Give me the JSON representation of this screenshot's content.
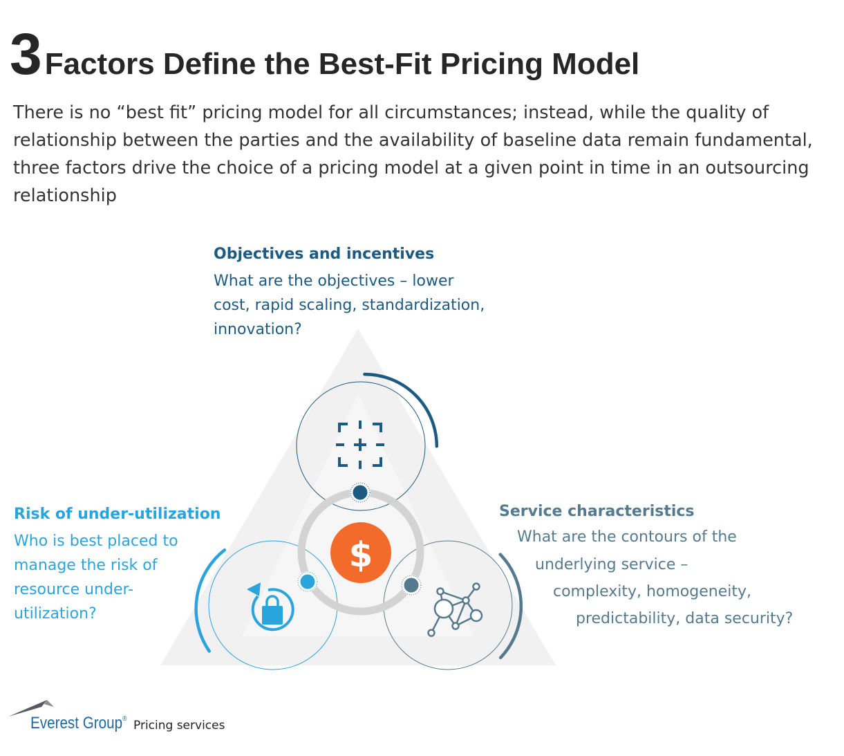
{
  "header": {
    "number": "3",
    "title": "Factors Define the Best-Fit Pricing Model"
  },
  "intro": {
    "text": "There is no “best fit” pricing model for all circumstances; instead, while the quality of relationship between the parties and the availability of baseline data remain fundamental, three factors drive the choice of a pricing model at a given point in time in an outsourcing relationship"
  },
  "factors": {
    "objectives": {
      "title": "Objectives and incentives",
      "lines": [
        "What are the objectives – lower",
        "cost, rapid scaling, standardization,",
        "innovation?"
      ],
      "icon": "focus-plus-icon",
      "color": "#1c5a82"
    },
    "risk": {
      "title": "Risk of under-utilization",
      "lines": [
        "Who is best placed to",
        "manage the risk of",
        "resource under-",
        "utilization?"
      ],
      "icon": "undo-lock-icon",
      "color": "#2aa4dc"
    },
    "service": {
      "title": "Service characteristics",
      "lines": [
        "What are the contours of the",
        "underlying service –",
        "complexity, homogeneity,",
        "predictability, data security?"
      ],
      "icon": "network-nodes-icon",
      "color": "#557a8e"
    }
  },
  "center": {
    "symbol": "$",
    "icon": "dollar-coin-icon",
    "color": "#f26b2a"
  },
  "colors": {
    "triangle": "#f1f1f1",
    "ring": "#d3d3d3"
  },
  "footer": {
    "brand": "Everest Group",
    "registered": "®",
    "tagline": "Pricing services"
  }
}
